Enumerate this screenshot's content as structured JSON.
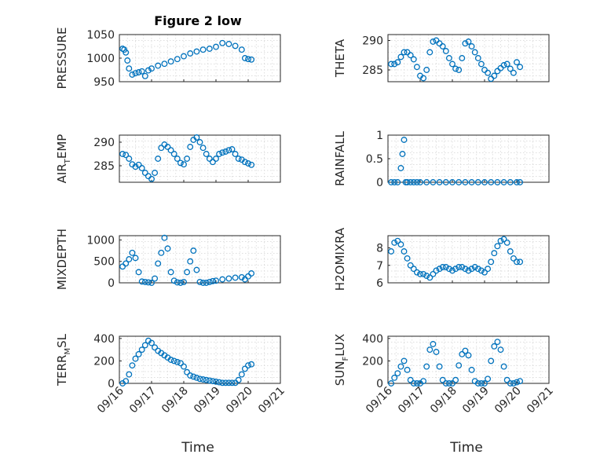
{
  "chart_data": [
    {
      "type": "scatter",
      "title": "Figure 2 low",
      "ylabel": "PRESSURE",
      "ylim": [
        950,
        1050
      ],
      "yticks": [
        "950",
        "1000",
        "1050"
      ],
      "xlim": [
        "09/16",
        "09/21"
      ],
      "xticks": [
        "09/16",
        "09/17",
        "09/18",
        "09/19",
        "09/20",
        "09/21"
      ],
      "x": [
        0.1,
        0.15,
        0.2,
        0.25,
        0.3,
        0.4,
        0.5,
        0.6,
        0.7,
        0.8,
        0.9,
        1.0,
        1.2,
        1.4,
        1.6,
        1.8,
        2.0,
        2.2,
        2.4,
        2.6,
        2.8,
        3.0,
        3.2,
        3.4,
        3.6,
        3.8,
        3.9,
        4.0,
        4.1
      ],
      "y": [
        1020,
        1018,
        1012,
        995,
        978,
        965,
        968,
        970,
        972,
        962,
        974,
        978,
        984,
        988,
        993,
        998,
        1004,
        1010,
        1014,
        1018,
        1020,
        1024,
        1032,
        1030,
        1026,
        1018,
        1000,
        998,
        997
      ]
    },
    {
      "type": "scatter",
      "title": "",
      "ylabel": "THETA",
      "ylim": [
        283,
        291
      ],
      "yticks": [
        "285",
        "290"
      ],
      "xlim": [
        "09/16",
        "09/21"
      ],
      "xticks": [
        "09/16",
        "09/17",
        "09/18",
        "09/19",
        "09/20",
        "09/21"
      ],
      "x": [
        0.1,
        0.2,
        0.3,
        0.4,
        0.5,
        0.6,
        0.7,
        0.8,
        0.9,
        1.0,
        1.1,
        1.2,
        1.3,
        1.4,
        1.5,
        1.6,
        1.7,
        1.8,
        1.9,
        2.0,
        2.1,
        2.2,
        2.3,
        2.4,
        2.5,
        2.6,
        2.7,
        2.8,
        2.9,
        3.0,
        3.1,
        3.2,
        3.3,
        3.4,
        3.5,
        3.6,
        3.7,
        3.8,
        3.9,
        4.0,
        4.1
      ],
      "y": [
        286,
        286,
        286.3,
        287.2,
        288,
        288,
        287.5,
        286.8,
        285.5,
        284,
        283.6,
        285,
        288,
        289.8,
        290,
        289.5,
        289,
        288.2,
        287,
        286,
        285.2,
        285,
        287,
        289.5,
        289.8,
        289,
        288,
        287,
        286,
        285,
        284.5,
        283.5,
        284,
        284.8,
        285.3,
        285.8,
        286,
        285.2,
        284.5,
        286.3,
        285.5
      ]
    },
    {
      "type": "scatter",
      "title": "",
      "ylabel": "AIR_TEMP",
      "ylim": [
        281.5,
        291.5
      ],
      "yticks": [
        "285",
        "290"
      ],
      "xlim": [
        "09/16",
        "09/21"
      ],
      "xticks": [
        "09/16",
        "09/17",
        "09/18",
        "09/19",
        "09/20",
        "09/21"
      ],
      "x": [
        0.1,
        0.2,
        0.3,
        0.4,
        0.5,
        0.6,
        0.7,
        0.8,
        0.9,
        1.0,
        1.1,
        1.2,
        1.3,
        1.4,
        1.5,
        1.6,
        1.7,
        1.8,
        1.9,
        2.0,
        2.1,
        2.2,
        2.3,
        2.4,
        2.5,
        2.6,
        2.7,
        2.8,
        2.9,
        3.0,
        3.1,
        3.2,
        3.3,
        3.4,
        3.5,
        3.6,
        3.7,
        3.8,
        3.9,
        4.0,
        4.1
      ],
      "y": [
        287.5,
        287.3,
        286.5,
        285.3,
        284.8,
        285.2,
        284.5,
        283.5,
        282.8,
        282.2,
        283.5,
        286.5,
        288.8,
        289.5,
        289,
        288.3,
        287.5,
        286.5,
        285.6,
        285.3,
        286.5,
        289,
        290.5,
        291,
        290,
        288.8,
        287.5,
        286.5,
        285.8,
        286.5,
        287.5,
        287.8,
        288,
        288.3,
        288.5,
        287.5,
        286.5,
        286.3,
        285.8,
        285.5,
        285.2
      ]
    },
    {
      "type": "scatter",
      "title": "",
      "ylabel": "RAINFALL",
      "ylim": [
        0,
        1
      ],
      "yticks": [
        "0",
        "0.5",
        "1"
      ],
      "xlim": [
        "09/16",
        "09/21"
      ],
      "xticks": [
        "09/16",
        "09/17",
        "09/18",
        "09/19",
        "09/20",
        "09/21"
      ],
      "x": [
        0.1,
        0.2,
        0.3,
        0.4,
        0.45,
        0.5,
        0.55,
        0.6,
        0.7,
        0.8,
        0.9,
        1.0,
        1.2,
        1.4,
        1.6,
        1.8,
        2.0,
        2.2,
        2.4,
        2.6,
        2.8,
        3.0,
        3.2,
        3.4,
        3.6,
        3.8,
        4.0,
        4.1
      ],
      "y": [
        0,
        0,
        0,
        0.3,
        0.6,
        0.9,
        0,
        0,
        0,
        0,
        0,
        0,
        0,
        0,
        0,
        0,
        0,
        0,
        0,
        0,
        0,
        0,
        0,
        0,
        0,
        0,
        0,
        0
      ]
    },
    {
      "type": "scatter",
      "title": "",
      "ylabel": "MIXDEPTH",
      "ylim": [
        0,
        1100
      ],
      "yticks": [
        "0",
        "500",
        "1000"
      ],
      "xlim": [
        "09/16",
        "09/21"
      ],
      "xticks": [
        "09/16",
        "09/17",
        "09/18",
        "09/19",
        "09/20",
        "09/21"
      ],
      "x": [
        0.1,
        0.2,
        0.3,
        0.4,
        0.5,
        0.6,
        0.7,
        0.8,
        0.9,
        1.0,
        1.1,
        1.2,
        1.3,
        1.4,
        1.5,
        1.6,
        1.7,
        1.8,
        1.9,
        2.0,
        2.1,
        2.2,
        2.3,
        2.4,
        2.5,
        2.6,
        2.7,
        2.8,
        2.9,
        3.0,
        3.2,
        3.4,
        3.6,
        3.8,
        3.9,
        4.0,
        4.1
      ],
      "y": [
        380,
        450,
        550,
        700,
        580,
        250,
        30,
        20,
        10,
        0,
        100,
        450,
        700,
        1050,
        800,
        250,
        50,
        10,
        0,
        20,
        250,
        500,
        750,
        300,
        20,
        0,
        0,
        20,
        40,
        50,
        80,
        100,
        120,
        130,
        80,
        150,
        220
      ]
    },
    {
      "type": "scatter",
      "title": "",
      "ylabel": "H2OMIXRA",
      "ylim": [
        6,
        8.7
      ],
      "yticks": [
        "6",
        "7",
        "8"
      ],
      "xlim": [
        "09/16",
        "09/21"
      ],
      "xticks": [
        "09/16",
        "09/17",
        "09/18",
        "09/19",
        "09/20",
        "09/21"
      ],
      "x": [
        0.1,
        0.2,
        0.3,
        0.4,
        0.5,
        0.6,
        0.7,
        0.8,
        0.9,
        1.0,
        1.1,
        1.2,
        1.3,
        1.4,
        1.5,
        1.6,
        1.7,
        1.8,
        1.9,
        2.0,
        2.1,
        2.2,
        2.3,
        2.4,
        2.5,
        2.6,
        2.7,
        2.8,
        2.9,
        3.0,
        3.1,
        3.2,
        3.3,
        3.4,
        3.5,
        3.6,
        3.7,
        3.8,
        3.9,
        4.0,
        4.1
      ],
      "y": [
        7.8,
        8.3,
        8.4,
        8.2,
        7.8,
        7.4,
        7.0,
        6.8,
        6.6,
        6.5,
        6.5,
        6.4,
        6.3,
        6.5,
        6.7,
        6.8,
        6.9,
        6.9,
        6.8,
        6.7,
        6.8,
        6.9,
        6.9,
        6.8,
        6.7,
        6.8,
        6.9,
        6.8,
        6.7,
        6.6,
        6.8,
        7.2,
        7.7,
        8.1,
        8.4,
        8.5,
        8.3,
        7.8,
        7.4,
        7.2,
        7.2
      ]
    },
    {
      "type": "scatter",
      "title": "",
      "ylabel": "TERR_MSL",
      "ylim": [
        0,
        420
      ],
      "yticks": [
        "0",
        "200",
        "400"
      ],
      "xlim": [
        "09/16",
        "09/21"
      ],
      "xticks": [
        "09/16",
        "09/17",
        "09/18",
        "09/19",
        "09/20",
        "09/21"
      ],
      "x": [
        0.1,
        0.2,
        0.3,
        0.4,
        0.5,
        0.6,
        0.7,
        0.8,
        0.9,
        1.0,
        1.1,
        1.2,
        1.3,
        1.4,
        1.5,
        1.6,
        1.7,
        1.8,
        1.9,
        2.0,
        2.1,
        2.2,
        2.3,
        2.4,
        2.5,
        2.6,
        2.7,
        2.8,
        2.9,
        3.0,
        3.1,
        3.2,
        3.3,
        3.4,
        3.5,
        3.6,
        3.7,
        3.8,
        3.9,
        4.0,
        4.1
      ],
      "y": [
        0,
        20,
        80,
        160,
        220,
        260,
        300,
        340,
        380,
        360,
        320,
        290,
        270,
        250,
        230,
        210,
        200,
        190,
        180,
        150,
        100,
        70,
        60,
        50,
        40,
        35,
        30,
        25,
        20,
        15,
        10,
        5,
        5,
        5,
        5,
        5,
        30,
        80,
        130,
        160,
        170
      ]
    },
    {
      "type": "scatter",
      "title": "",
      "ylabel": "SUN_FLUX",
      "ylim": [
        0,
        420
      ],
      "yticks": [
        "0",
        "200",
        "400"
      ],
      "xlim": [
        "09/16",
        "09/21"
      ],
      "xticks": [
        "09/16",
        "09/17",
        "09/18",
        "09/19",
        "09/20",
        "09/21"
      ],
      "x": [
        0.1,
        0.2,
        0.3,
        0.4,
        0.5,
        0.6,
        0.7,
        0.8,
        0.9,
        1.0,
        1.1,
        1.2,
        1.3,
        1.4,
        1.5,
        1.6,
        1.7,
        1.8,
        1.9,
        2.0,
        2.1,
        2.2,
        2.3,
        2.4,
        2.5,
        2.6,
        2.7,
        2.8,
        2.9,
        3.0,
        3.1,
        3.2,
        3.3,
        3.4,
        3.5,
        3.6,
        3.7,
        3.8,
        3.9,
        4.0,
        4.1
      ],
      "y": [
        0,
        50,
        90,
        150,
        200,
        120,
        30,
        0,
        0,
        0,
        20,
        150,
        300,
        350,
        280,
        150,
        30,
        0,
        0,
        0,
        30,
        160,
        260,
        290,
        250,
        120,
        20,
        0,
        0,
        0,
        40,
        200,
        330,
        370,
        300,
        150,
        30,
        0,
        0,
        10,
        20
      ]
    }
  ],
  "xlabel": "Time"
}
